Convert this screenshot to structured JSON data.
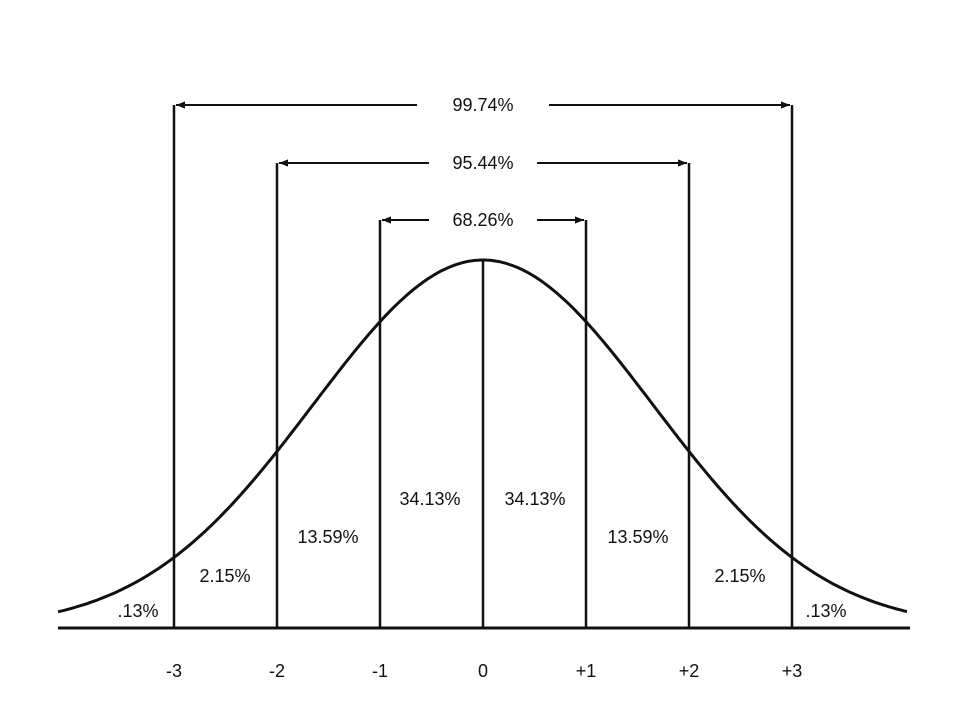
{
  "brackets": [
    "99.74%",
    "95.44%",
    "68.26%"
  ],
  "regions": [
    ".13%",
    "2.15%",
    "13.59%",
    "34.13%",
    "34.13%",
    "13.59%",
    "2.15%",
    ".13%"
  ],
  "sigma_labels": [
    "-3",
    "-2",
    "-1",
    "0",
    "+1",
    "+2",
    "+3"
  ]
}
